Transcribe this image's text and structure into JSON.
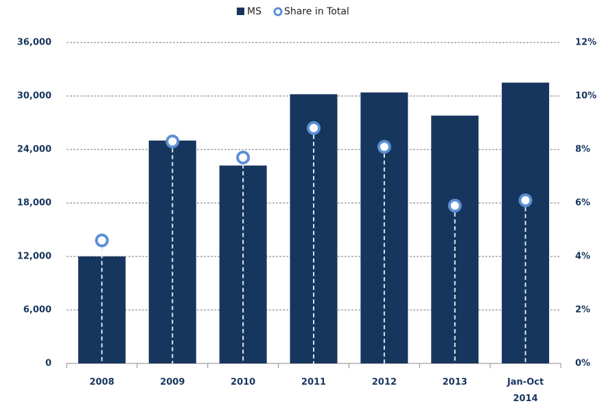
{
  "chart_data": {
    "type": "bar",
    "categories": [
      "2008",
      "2009",
      "2010",
      "2011",
      "2012",
      "2013",
      "Jan-Oct 2014"
    ],
    "series": [
      {
        "name": "MS",
        "type": "bar",
        "color": "#17365d",
        "values": [
          12000,
          25000,
          22200,
          30200,
          30400,
          27800,
          31500
        ]
      },
      {
        "name": "Share in Total",
        "type": "line",
        "axis": "y2",
        "color": "#5b8fd6",
        "values": [
          4.6,
          8.3,
          7.7,
          8.8,
          8.1,
          5.9,
          6.1
        ]
      }
    ],
    "ylim": [
      0,
      36000
    ],
    "yticks": [
      0,
      {
        "value": 6000,
        "label": "6,000"
      },
      {
        "value": 12000,
        "label": "12,000"
      },
      {
        "value": 18000,
        "label": "18,000"
      },
      {
        "value": 24000,
        "label": "24,000"
      },
      {
        "value": 30000,
        "label": "30,000"
      },
      {
        "value": 36000,
        "label": "36,000"
      }
    ],
    "y2lim": [
      0,
      12
    ],
    "y2ticks": [
      {
        "value": 0,
        "label": "0%"
      },
      {
        "value": 2,
        "label": "2%"
      },
      {
        "value": 4,
        "label": "4%"
      },
      {
        "value": 6,
        "label": "6%"
      },
      {
        "value": 8,
        "label": "8%"
      },
      {
        "value": 10,
        "label": "10%"
      },
      {
        "value": 12,
        "label": "12%"
      }
    ],
    "grid": true,
    "legend": "top"
  }
}
